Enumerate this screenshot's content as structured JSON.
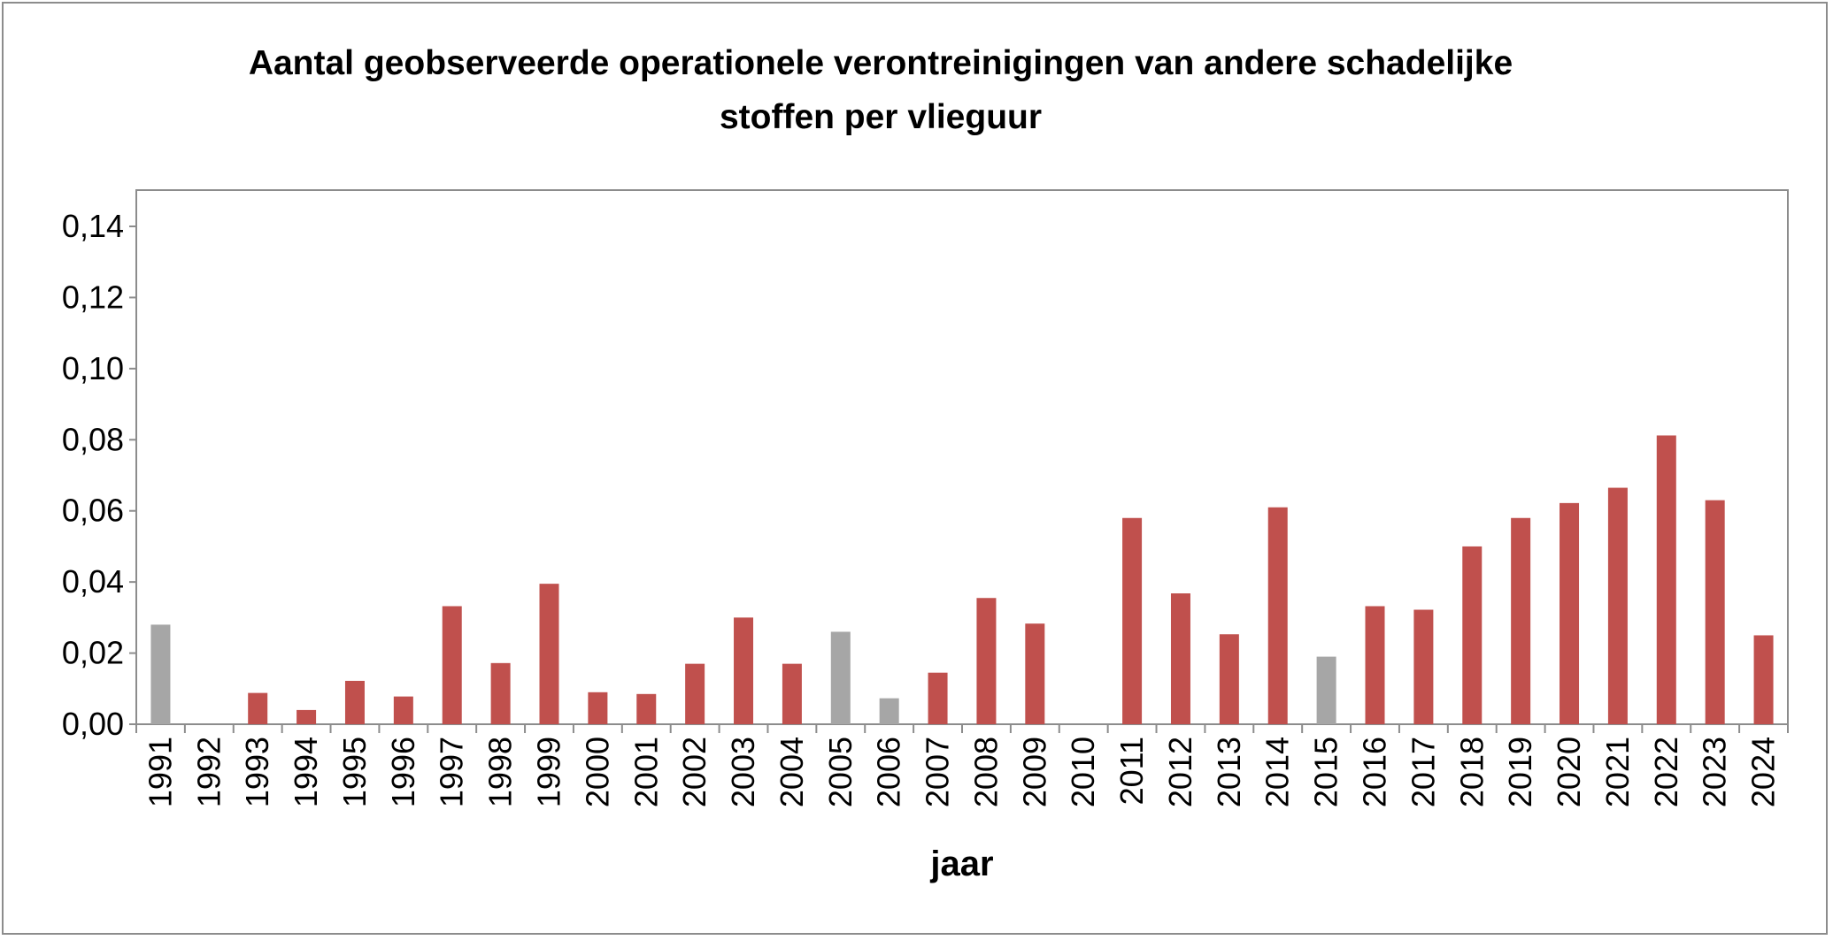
{
  "chart_data": {
    "type": "bar",
    "title": "Aantal geobserveerde operationele verontreinigingen van andere schadelijke stoffen per vlieguur",
    "title_lines": [
      "Aantal geobserveerde operationele verontreinigingen van andere schadelijke",
      "stoffen per vlieguur"
    ],
    "xlabel": "jaar",
    "ylabel": "",
    "ylim": [
      0,
      0.14
    ],
    "yticks": [
      "0,00",
      "0,02",
      "0,04",
      "0,06",
      "0,08",
      "0,10",
      "0,12",
      "0,14"
    ],
    "grid": false,
    "legend": "none",
    "categories": [
      "1991",
      "1992",
      "1993",
      "1994",
      "1995",
      "1996",
      "1997",
      "1998",
      "1999",
      "2000",
      "2001",
      "2002",
      "2003",
      "2004",
      "2005",
      "2006",
      "2007",
      "2008",
      "2009",
      "2010",
      "2011",
      "2012",
      "2013",
      "2014",
      "2015",
      "2016",
      "2017",
      "2018",
      "2019",
      "2020",
      "2021",
      "2022",
      "2023",
      "2024"
    ],
    "values": [
      0.028,
      0,
      0.0088,
      0.004,
      0.0122,
      0.0078,
      0.0332,
      0.0172,
      0.0395,
      0.009,
      0.0085,
      0.017,
      0.03,
      0.017,
      0.026,
      0.0073,
      0.0145,
      0.0355,
      0.0283,
      0,
      0.058,
      0.0368,
      0.0253,
      0.061,
      0.019,
      0.0332,
      0.0322,
      0.05,
      0.058,
      0.0622,
      0.0665,
      0.0812,
      0.063,
      0.025
    ],
    "bar_colors": [
      "#a6a6a6",
      "#c0504d",
      "#c0504d",
      "#c0504d",
      "#c0504d",
      "#c0504d",
      "#c0504d",
      "#c0504d",
      "#c0504d",
      "#c0504d",
      "#c0504d",
      "#c0504d",
      "#c0504d",
      "#c0504d",
      "#a6a6a6",
      "#a6a6a6",
      "#c0504d",
      "#c0504d",
      "#c0504d",
      "#c0504d",
      "#c0504d",
      "#c0504d",
      "#c0504d",
      "#c0504d",
      "#a6a6a6",
      "#c0504d",
      "#c0504d",
      "#c0504d",
      "#c0504d",
      "#c0504d",
      "#c0504d",
      "#c0504d",
      "#c0504d",
      "#c0504d"
    ],
    "colors": {
      "primary": "#c0504d",
      "secondary": "#a6a6a6",
      "axis": "#8c8c8c"
    }
  }
}
